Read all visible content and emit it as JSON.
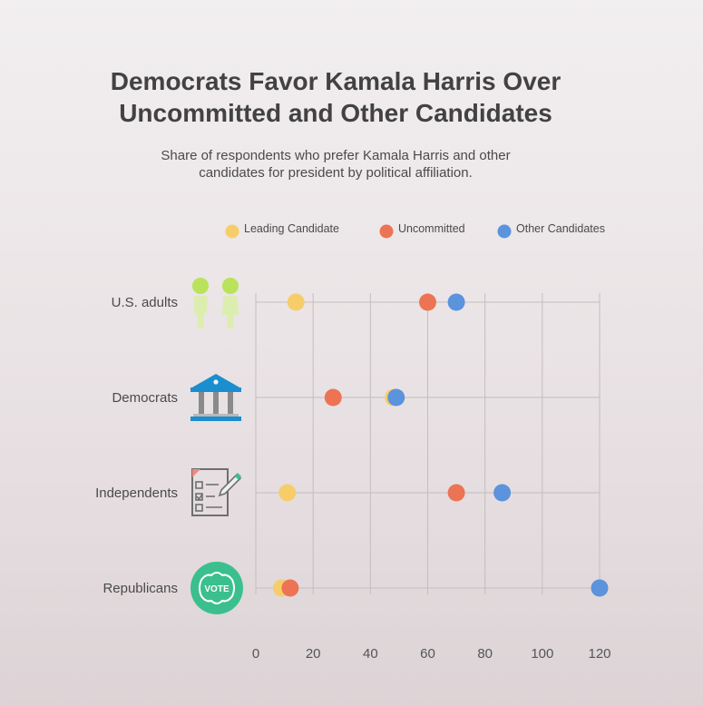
{
  "title_lines": [
    "Democrats Favor Kamala Harris Over",
    "Uncommitted and Other Candidates"
  ],
  "subtitle_lines": [
    "Share of respondents who prefer Kamala Harris and other",
    "candidates for president by political affiliation."
  ],
  "icons": [
    "people-icon",
    "government-building-icon",
    "checklist-icon",
    "vote-badge-icon"
  ],
  "vote_badge_text": "VOTE",
  "colors": {
    "leading": "#f7cd6a",
    "uncommitted": "#ec7455",
    "other": "#5b93dc",
    "grid": "#c4bdbf",
    "people": "#b9e35a",
    "building": "#1b8ecf",
    "vote_badge": "#3bbf8f"
  },
  "chart_data": {
    "type": "scatter",
    "title": "Democrats Favor Kamala Harris Over Uncommitted and Other Candidates",
    "subtitle": "Share of respondents who prefer Kamala Harris and other candidates for president by political affiliation.",
    "categories": [
      "U.S. adults",
      "Democrats",
      "Independents",
      "Republicans"
    ],
    "series": [
      {
        "name": "Leading Candidate",
        "values": [
          14,
          48,
          11,
          9
        ]
      },
      {
        "name": "Uncommitted",
        "values": [
          60,
          27,
          70,
          12
        ]
      },
      {
        "name": "Other Candidates",
        "values": [
          70,
          49,
          86,
          120
        ]
      }
    ],
    "xticks": [
      0,
      20,
      40,
      60,
      80,
      100,
      120
    ],
    "xlim": [
      0,
      120
    ],
    "xlabel": "",
    "ylabel": "",
    "grid": true,
    "legend_position": "top"
  }
}
